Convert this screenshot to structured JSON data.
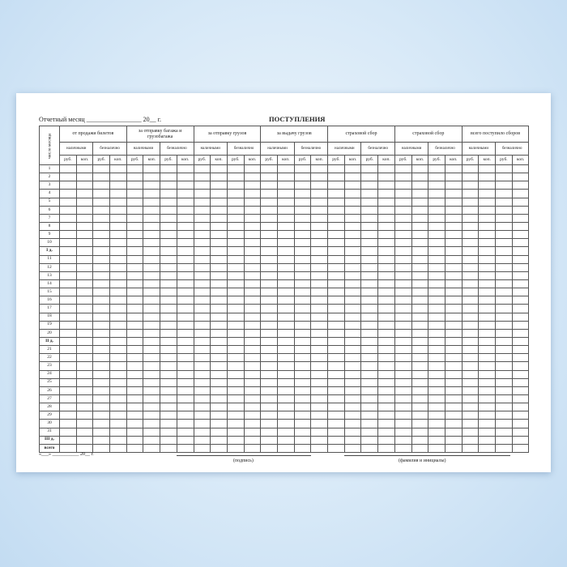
{
  "header": {
    "report_month": "Отчетный месяц _________________ 20__ г.",
    "title": "ПОСТУПЛЕНИЯ"
  },
  "table": {
    "first_col": "число месяца",
    "groups": [
      "от продажи билетов",
      "за отправку багажа и грузобагажа",
      "за отправку грузов",
      "за выдачу грузов",
      "страховой сбор",
      "страховой сбор",
      "всего поступило сборов"
    ],
    "subgroups": [
      "наличными",
      "безналично"
    ],
    "units": [
      "руб.",
      "коп."
    ],
    "rows": [
      "1",
      "2",
      "3",
      "4",
      "5",
      "6",
      "7",
      "8",
      "9",
      "10",
      "I д.",
      "11",
      "12",
      "13",
      "14",
      "15",
      "16",
      "17",
      "18",
      "19",
      "20",
      "II д.",
      "21",
      "22",
      "23",
      "24",
      "25",
      "26",
      "27",
      "28",
      "29",
      "30",
      "31",
      "III д.",
      "всего"
    ]
  },
  "footer": {
    "date": "«___» ___________ 20__ г.",
    "signature": "(подпись)",
    "name": "(фамилия и инициалы)"
  }
}
